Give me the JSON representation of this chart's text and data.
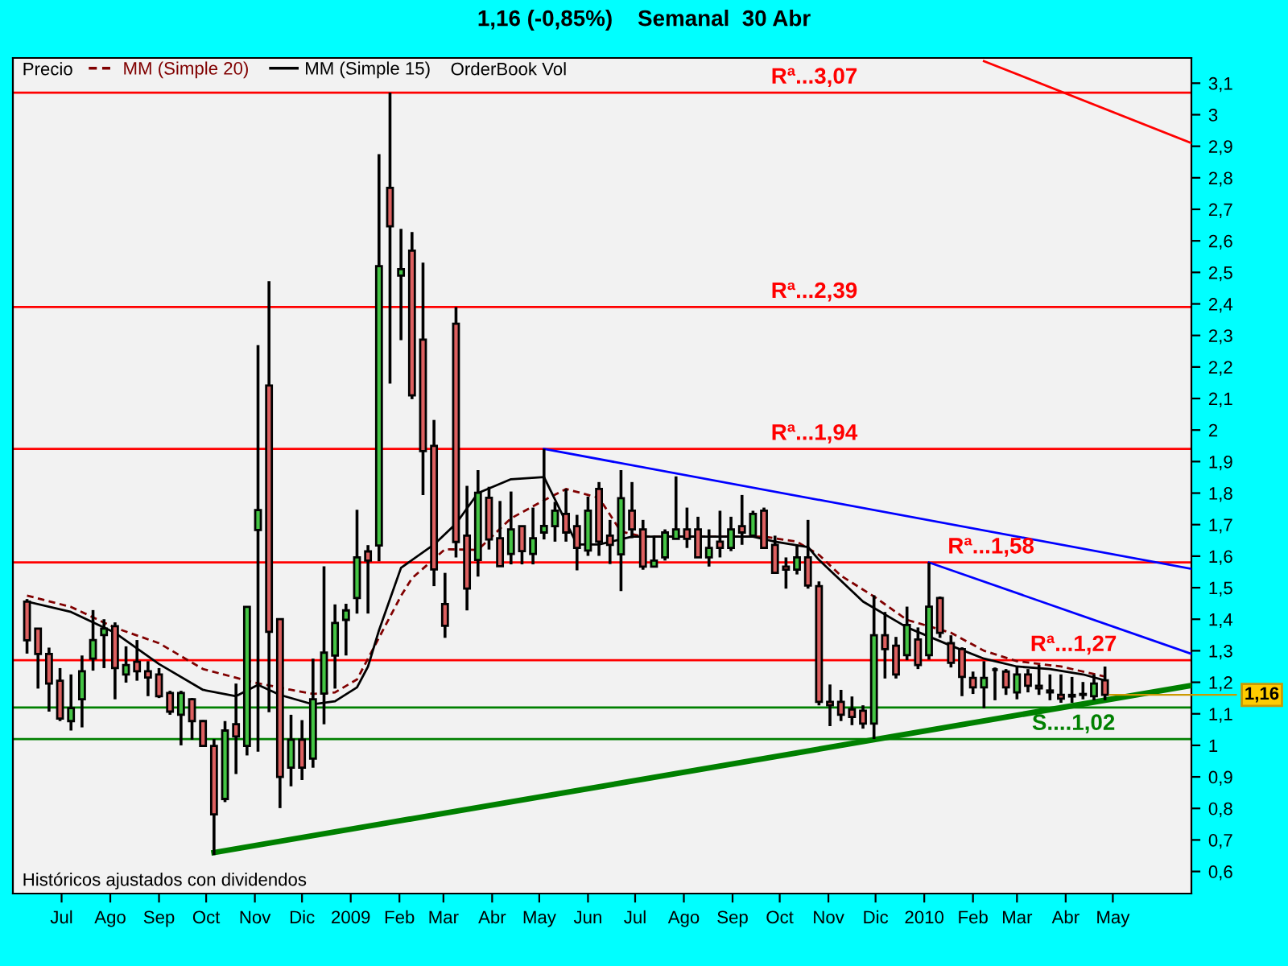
{
  "chart_data": {
    "type": "candlestick",
    "title": "1,16 (-0,85%)    Semanal  30 Abr",
    "xlim": [
      "2008-05-31",
      "2010-06-20"
    ],
    "ylim": [
      0.53,
      3.18
    ],
    "yticks": [
      {
        "value": 0.6,
        "label": "0,6"
      },
      {
        "value": 0.7,
        "label": "0,7"
      },
      {
        "value": 0.8,
        "label": "0,8"
      },
      {
        "value": 0.9,
        "label": "0,9"
      },
      1,
      {
        "value": 1.1,
        "label": "1,1"
      },
      {
        "value": 1.2,
        "label": "1,2"
      },
      {
        "value": 1.3,
        "label": "1,3"
      },
      {
        "value": 1.4,
        "label": "1,4"
      },
      {
        "value": 1.5,
        "label": "1,5"
      },
      {
        "value": 1.6,
        "label": "1,6"
      },
      {
        "value": 1.7,
        "label": "1,7"
      },
      {
        "value": 1.8,
        "label": "1,8"
      },
      {
        "value": 1.9,
        "label": "1,9"
      },
      2,
      {
        "value": 2.1,
        "label": "2,1"
      },
      {
        "value": 2.2,
        "label": "2,2"
      },
      {
        "value": 2.3,
        "label": "2,3"
      },
      {
        "value": 2.4,
        "label": "2,4"
      },
      {
        "value": 2.5,
        "label": "2,5"
      },
      {
        "value": 2.6,
        "label": "2,6"
      },
      {
        "value": 2.7,
        "label": "2,7"
      },
      {
        "value": 2.8,
        "label": "2,8"
      },
      {
        "value": 2.9,
        "label": "2,9"
      },
      3,
      {
        "value": 3.1,
        "label": "3,1"
      }
    ],
    "xticks": [
      {
        "value": "2008-07-01",
        "label": "Jul"
      },
      {
        "value": "2008-08-01",
        "label": "Ago"
      },
      {
        "value": "2008-09-01",
        "label": "Sep"
      },
      {
        "value": "2008-10-01",
        "label": "Oct"
      },
      {
        "value": "2008-11-01",
        "label": "Nov"
      },
      {
        "value": "2008-12-01",
        "label": "Dic"
      },
      {
        "value": "2009-01-01",
        "label": "2009"
      },
      {
        "value": "2009-02-01",
        "label": "Feb"
      },
      {
        "value": "2009-03-01",
        "label": "Mar"
      },
      {
        "value": "2009-04-01",
        "label": "Abr"
      },
      {
        "value": "2009-05-01",
        "label": "May"
      },
      {
        "value": "2009-06-01",
        "label": "Jun"
      },
      {
        "value": "2009-07-01",
        "label": "Jul"
      },
      {
        "value": "2009-08-01",
        "label": "Ago"
      },
      {
        "value": "2009-09-01",
        "label": "Sep"
      },
      {
        "value": "2009-10-01",
        "label": "Oct"
      },
      {
        "value": "2009-11-01",
        "label": "Nov"
      },
      {
        "value": "2009-12-01",
        "label": "Dic"
      },
      {
        "value": "2010-01-01",
        "label": "2010"
      },
      {
        "value": "2010-02-01",
        "label": "Feb"
      },
      {
        "value": "2010-03-01",
        "label": "Mar"
      },
      {
        "value": "2010-04-01",
        "label": "Abr"
      },
      {
        "value": "2010-05-01",
        "label": "May"
      }
    ],
    "legend": "top left",
    "series": [
      {
        "x": [
          "2008-06-09",
          "2008-06-16",
          "2008-06-23",
          "2008-06-30",
          "2008-07-07",
          "2008-07-14",
          "2008-07-21",
          "2008-07-28",
          "2008-08-04",
          "2008-08-11",
          "2008-08-18",
          "2008-08-25",
          "2008-09-01",
          "2008-09-08",
          "2008-09-15",
          "2008-09-22",
          "2008-09-29",
          "2008-10-06",
          "2008-10-13",
          "2008-10-20",
          "2008-10-27",
          "2008-11-03",
          "2008-11-10",
          "2008-11-17",
          "2008-11-24",
          "2008-12-01",
          "2008-12-08",
          "2008-12-15",
          "2008-12-22",
          "2008-12-29",
          "2009-01-05",
          "2009-01-12",
          "2009-01-19",
          "2009-01-26",
          "2009-02-02",
          "2009-02-09",
          "2009-02-16",
          "2009-02-23",
          "2009-03-02",
          "2009-03-09",
          "2009-03-16",
          "2009-03-23",
          "2009-03-30",
          "2009-04-06",
          "2009-04-13",
          "2009-04-20",
          "2009-04-27",
          "2009-05-04",
          "2009-05-11",
          "2009-05-18",
          "2009-05-25",
          "2009-06-01",
          "2009-06-08",
          "2009-06-15",
          "2009-06-22",
          "2009-06-29",
          "2009-07-06",
          "2009-07-13",
          "2009-07-20",
          "2009-07-27",
          "2009-08-03",
          "2009-08-10",
          "2009-08-17",
          "2009-08-24",
          "2009-08-31",
          "2009-09-07",
          "2009-09-14",
          "2009-09-21",
          "2009-09-28",
          "2009-10-05",
          "2009-10-12",
          "2009-10-19",
          "2009-10-26",
          "2009-11-02",
          "2009-11-09",
          "2009-11-16",
          "2009-11-23",
          "2009-11-30",
          "2009-12-07",
          "2009-12-14",
          "2009-12-21",
          "2009-12-28",
          "2010-01-04",
          "2010-01-11",
          "2010-01-18",
          "2010-01-25",
          "2010-02-01",
          "2010-02-08",
          "2010-02-15",
          "2010-02-22",
          "2010-03-01",
          "2010-03-08",
          "2010-03-15",
          "2010-03-22",
          "2010-03-29",
          "2010-04-05",
          "2010-04-12",
          "2010-04-19",
          "2010-04-26"
        ],
        "ohlc": [
          [
            1.456,
            1.464,
            1.291,
            1.333
          ],
          [
            1.37,
            1.37,
            1.18,
            1.29
          ],
          [
            1.29,
            1.31,
            1.107,
            1.196
          ],
          [
            1.205,
            1.245,
            1.077,
            1.085
          ],
          [
            1.077,
            1.225,
            1.047,
            1.118
          ],
          [
            1.146,
            1.285,
            1.057,
            1.235
          ],
          [
            1.275,
            1.429,
            1.237,
            1.334
          ],
          [
            1.35,
            1.4,
            1.245,
            1.37
          ],
          [
            1.378,
            1.39,
            1.146,
            1.245
          ],
          [
            1.225,
            1.314,
            1.199,
            1.255
          ],
          [
            1.265,
            1.334,
            1.205,
            1.235
          ],
          [
            1.235,
            1.267,
            1.156,
            1.215
          ],
          [
            1.225,
            1.245,
            1.15,
            1.156
          ],
          [
            1.166,
            1.173,
            1.097,
            1.107
          ],
          [
            1.097,
            1.173,
            1.0,
            1.166
          ],
          [
            1.146,
            1.15,
            1.018,
            1.077
          ],
          [
            1.077,
            1.08,
            0.998,
            0.998
          ],
          [
            0.998,
            1.02,
            0.652,
            0.781
          ],
          [
            0.83,
            1.077,
            0.82,
            1.047
          ],
          [
            1.067,
            1.196,
            0.909,
            1.028
          ],
          [
            0.998,
            1.439,
            0.968,
            1.439
          ],
          [
            1.683,
            2.269,
            0.98,
            1.746
          ],
          [
            2.141,
            2.472,
            1.105,
            1.36
          ],
          [
            1.4,
            1.4,
            0.801,
            0.9
          ],
          [
            0.929,
            1.097,
            0.87,
            1.018
          ],
          [
            1.018,
            1.08,
            0.89,
            0.929
          ],
          [
            0.958,
            1.275,
            0.929,
            1.146
          ],
          [
            1.164,
            1.568,
            1.067,
            1.294
          ],
          [
            1.285,
            1.447,
            1.18,
            1.388
          ],
          [
            1.398,
            1.449,
            1.285,
            1.428
          ],
          [
            1.467,
            1.747,
            1.418,
            1.596
          ],
          [
            1.615,
            1.635,
            1.418,
            1.586
          ],
          [
            1.634,
            2.875,
            1.584,
            2.52
          ],
          [
            2.768,
            3.07,
            2.147,
            2.646
          ],
          [
            2.49,
            2.638,
            2.285,
            2.51
          ],
          [
            2.569,
            2.628,
            2.098,
            2.11
          ],
          [
            2.287,
            2.531,
            1.794,
            1.933
          ],
          [
            1.95,
            2.032,
            1.505,
            1.558
          ],
          [
            1.448,
            1.547,
            1.341,
            1.379
          ],
          [
            2.337,
            2.39,
            1.596,
            1.645
          ],
          [
            1.665,
            1.823,
            1.428,
            1.497
          ],
          [
            1.588,
            1.873,
            1.535,
            1.801
          ],
          [
            1.785,
            1.82,
            1.621,
            1.653
          ],
          [
            1.657,
            1.775,
            1.568,
            1.568
          ],
          [
            1.607,
            1.805,
            1.574,
            1.685
          ],
          [
            1.695,
            1.695,
            1.574,
            1.616
          ],
          [
            1.607,
            1.754,
            1.574,
            1.657
          ],
          [
            1.675,
            1.94,
            1.653,
            1.696
          ],
          [
            1.695,
            1.772,
            1.646,
            1.744
          ],
          [
            1.734,
            1.813,
            1.646,
            1.675
          ],
          [
            1.695,
            1.731,
            1.555,
            1.626
          ],
          [
            1.618,
            1.789,
            1.601,
            1.744
          ],
          [
            1.813,
            1.835,
            1.601,
            1.646
          ],
          [
            1.665,
            1.715,
            1.575,
            1.636
          ],
          [
            1.606,
            1.873,
            1.489,
            1.784
          ],
          [
            1.744,
            1.835,
            1.657,
            1.685
          ],
          [
            1.685,
            1.715,
            1.557,
            1.567
          ],
          [
            1.567,
            1.665,
            1.567,
            1.586
          ],
          [
            1.596,
            1.685,
            1.586,
            1.675
          ],
          [
            1.655,
            1.853,
            1.655,
            1.685
          ],
          [
            1.685,
            1.754,
            1.626,
            1.655
          ],
          [
            1.685,
            1.725,
            1.596,
            1.596
          ],
          [
            1.596,
            1.685,
            1.567,
            1.626
          ],
          [
            1.646,
            1.744,
            1.596,
            1.626
          ],
          [
            1.626,
            1.725,
            1.616,
            1.685
          ],
          [
            1.695,
            1.794,
            1.636,
            1.675
          ],
          [
            1.665,
            1.744,
            1.665,
            1.734
          ],
          [
            1.744,
            1.754,
            1.626,
            1.626
          ],
          [
            1.636,
            1.665,
            1.547,
            1.547
          ],
          [
            1.567,
            1.596,
            1.497,
            1.557
          ],
          [
            1.557,
            1.636,
            1.542,
            1.596
          ],
          [
            1.596,
            1.715,
            1.497,
            1.507
          ],
          [
            1.505,
            1.52,
            1.127,
            1.138
          ],
          [
            1.138,
            1.193,
            1.061,
            1.127
          ],
          [
            1.138,
            1.176,
            1.077,
            1.097
          ],
          [
            1.114,
            1.155,
            1.064,
            1.09
          ],
          [
            1.11,
            1.127,
            1.053,
            1.069
          ],
          [
            1.069,
            1.476,
            1.02,
            1.349
          ],
          [
            1.349,
            1.423,
            1.212,
            1.305
          ],
          [
            1.316,
            1.344,
            1.212,
            1.225
          ],
          [
            1.286,
            1.44,
            1.27,
            1.382
          ],
          [
            1.336,
            1.374,
            1.242,
            1.255
          ],
          [
            1.286,
            1.58,
            1.272,
            1.44
          ],
          [
            1.467,
            1.472,
            1.341,
            1.357
          ],
          [
            1.324,
            1.349,
            1.247,
            1.262
          ],
          [
            1.305,
            1.311,
            1.156,
            1.217
          ],
          [
            1.214,
            1.234,
            1.163,
            1.184
          ],
          [
            1.184,
            1.267,
            1.118,
            1.214
          ],
          [
            1.24,
            1.247,
            1.143,
            1.24
          ],
          [
            1.234,
            1.242,
            1.16,
            1.184
          ],
          [
            1.168,
            1.25,
            1.146,
            1.225
          ],
          [
            1.225,
            1.242,
            1.168,
            1.189
          ],
          [
            1.189,
            1.255,
            1.16,
            1.181
          ],
          [
            1.174,
            1.225,
            1.143,
            1.168
          ],
          [
            1.16,
            1.225,
            1.135,
            1.148
          ],
          [
            1.155,
            1.217,
            1.135,
            1.16
          ],
          [
            1.16,
            1.201,
            1.146,
            1.163
          ],
          [
            1.156,
            1.225,
            1.143,
            1.196
          ],
          [
            1.206,
            1.25,
            1.143,
            1.16
          ]
        ]
      },
      {
        "name": "MM (Simple 20)",
        "type": "line",
        "color": "#800000",
        "line_style": "dashed",
        "x": [
          "2008-06-09",
          "2008-07-07",
          "2008-08-04",
          "2008-09-01",
          "2008-09-29",
          "2008-10-31",
          "2008-11-24",
          "2008-12-08",
          "2008-12-22",
          "2009-01-05",
          "2009-02-02",
          "2009-02-09",
          "2009-03-02",
          "2009-03-23",
          "2009-04-13",
          "2009-05-04",
          "2009-05-18",
          "2009-06-08",
          "2009-06-22",
          "2009-07-06",
          "2009-08-03",
          "2009-08-31",
          "2009-09-21",
          "2009-10-12",
          "2009-10-26",
          "2009-11-09",
          "2009-11-30",
          "2009-12-21",
          "2010-01-18",
          "2010-02-08",
          "2010-03-01",
          "2010-03-29",
          "2010-04-26"
        ],
        "values": [
          1.475,
          1.439,
          1.373,
          1.324,
          1.242,
          1.2,
          1.176,
          1.163,
          1.168,
          1.209,
          1.474,
          1.53,
          1.622,
          1.62,
          1.72,
          1.777,
          1.813,
          1.785,
          1.678,
          1.662,
          1.662,
          1.662,
          1.662,
          1.646,
          1.604,
          1.538,
          1.472,
          1.398,
          1.357,
          1.3,
          1.267,
          1.25,
          1.218
        ]
      },
      {
        "name": "MM (Simple 15)",
        "type": "line",
        "color": "#000000",
        "line_style": "solid",
        "x": [
          "2008-06-09",
          "2008-07-07",
          "2008-08-04",
          "2008-09-01",
          "2008-09-29",
          "2008-10-20",
          "2008-11-03",
          "2008-11-17",
          "2008-12-08",
          "2008-12-22",
          "2009-01-05",
          "2009-01-12",
          "2009-01-19",
          "2009-02-02",
          "2009-02-23",
          "2009-03-09",
          "2009-03-23",
          "2009-04-13",
          "2009-05-04",
          "2009-05-25",
          "2009-06-08",
          "2009-06-29",
          "2009-07-20",
          "2009-08-17",
          "2009-09-14",
          "2009-09-28",
          "2009-10-19",
          "2009-10-26",
          "2009-11-23",
          "2009-12-21",
          "2010-01-18",
          "2010-02-08",
          "2010-03-01",
          "2010-03-22",
          "2010-04-12",
          "2010-04-26"
        ],
        "values": [
          1.456,
          1.423,
          1.357,
          1.258,
          1.176,
          1.156,
          1.192,
          1.16,
          1.13,
          1.14,
          1.184,
          1.25,
          1.365,
          1.563,
          1.637,
          1.703,
          1.8,
          1.844,
          1.851,
          1.637,
          1.637,
          1.662,
          1.662,
          1.662,
          1.662,
          1.646,
          1.629,
          1.588,
          1.456,
          1.374,
          1.316,
          1.275,
          1.25,
          1.242,
          1.225,
          1.206
        ]
      },
      {
        "type": "line",
        "color": "#0000ff",
        "x": [
          "2009-05-04",
          "2010-06-20"
        ],
        "values": [
          1.94,
          1.56
        ]
      },
      {
        "type": "line",
        "color": "#0000ff",
        "x": [
          "2010-01-04",
          "2010-06-20"
        ],
        "values": [
          1.58,
          1.29
        ]
      },
      {
        "type": "line",
        "color": "#008000",
        "x": [
          "2008-10-06",
          "2010-06-20"
        ],
        "values": [
          0.66,
          1.19
        ]
      },
      {
        "type": "line",
        "color": "#ff0000",
        "x": [
          "2010-02-08",
          "2010-06-20"
        ],
        "values": [
          3.17,
          2.91
        ]
      }
    ],
    "ref_lines": [
      {
        "axis": "y",
        "value": 3.07,
        "label": "Rª...3,07",
        "color": "#ff0000"
      },
      {
        "axis": "y",
        "value": 2.39,
        "label": "Rª...2,39",
        "color": "#ff0000"
      },
      {
        "axis": "y",
        "value": 1.94,
        "label": "Rª...1,94",
        "color": "#ff0000"
      },
      {
        "axis": "y",
        "value": 1.58,
        "label": "Rª...1,58",
        "color": "#ff0000"
      },
      {
        "axis": "y",
        "value": 1.27,
        "label": "Rª...1,27",
        "color": "#ff0000"
      },
      {
        "axis": "y",
        "value": 1.12,
        "color": "#008000"
      },
      {
        "axis": "y",
        "value": 1.02,
        "label": "S....1,02",
        "color": "#008000"
      }
    ],
    "annotations": [
      "Precio",
      "OrderBook Vol",
      "Históricos ajustados con dividendos",
      {
        "text": "1,16",
        "x": "2010-04-26",
        "y": 1.16
      }
    ]
  }
}
